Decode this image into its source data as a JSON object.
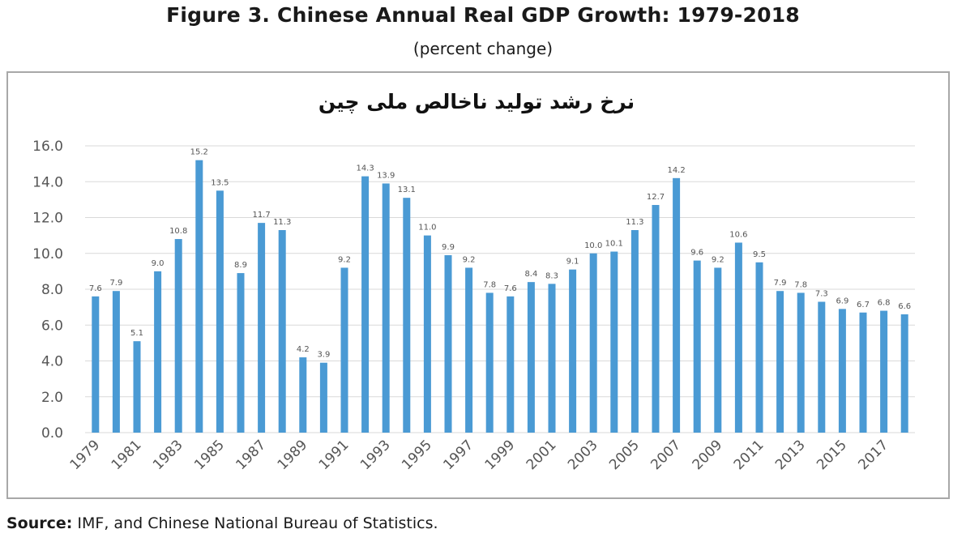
{
  "figure": {
    "title": "Figure 3. Chinese Annual Real GDP Growth: 1979-2018",
    "subtitle": "(percent change)"
  },
  "source": {
    "label": "Source:",
    "text": " IMF, and Chinese National Bureau of Statistics."
  },
  "chart_data": {
    "type": "bar",
    "title": "نرخ رشد تولید ناخالص ملی چین",
    "xlabel": "",
    "ylabel": "",
    "ylim": [
      0,
      16
    ],
    "yticks": [
      "0.0",
      "2.0",
      "4.0",
      "6.0",
      "8.0",
      "10.0",
      "12.0",
      "14.0",
      "16.0"
    ],
    "grid": true,
    "bar_color": "#4a9ad4",
    "categories": [
      "1979",
      "1980",
      "1981",
      "1982",
      "1983",
      "1984",
      "1985",
      "1986",
      "1987",
      "1988",
      "1989",
      "1990",
      "1991",
      "1992",
      "1993",
      "1994",
      "1995",
      "1996",
      "1997",
      "1998",
      "1999",
      "2000",
      "2001",
      "2002",
      "2003",
      "2004",
      "2005",
      "2006",
      "2007",
      "2008",
      "2009",
      "2010",
      "2011",
      "2012",
      "2013",
      "2014",
      "2015",
      "2016",
      "2017",
      "2018"
    ],
    "xtick_labels": [
      "1979",
      "",
      "1981",
      "",
      "1983",
      "",
      "1985",
      "",
      "1987",
      "",
      "1989",
      "",
      "1991",
      "",
      "1993",
      "",
      "1995",
      "",
      "1997",
      "",
      "1999",
      "",
      "2001",
      "",
      "2003",
      "",
      "2005",
      "",
      "2007",
      "",
      "2009",
      "",
      "2011",
      "",
      "2013",
      "",
      "2015",
      "",
      "2017",
      ""
    ],
    "values": [
      7.6,
      7.9,
      5.1,
      9.0,
      10.8,
      15.2,
      13.5,
      8.9,
      11.7,
      11.3,
      4.2,
      3.9,
      9.2,
      14.3,
      13.9,
      13.1,
      11.0,
      9.9,
      9.2,
      7.8,
      7.6,
      8.4,
      8.3,
      9.1,
      10.0,
      10.1,
      11.3,
      12.7,
      14.2,
      9.6,
      9.2,
      10.6,
      9.5,
      7.9,
      7.8,
      7.3,
      6.9,
      6.7,
      6.8,
      6.6
    ],
    "data_labels": [
      "7.6",
      "7.9",
      "5.1",
      "9.0",
      "10.8",
      "15.2",
      "13.5",
      "8.9",
      "11.7",
      "11.3",
      "4.2",
      "3.9",
      "9.2",
      "14.3",
      "13.9",
      "13.1",
      "11.0",
      "9.9",
      "9.2",
      "7.8",
      "7.6",
      "8.4",
      "8.3",
      "9.1",
      "10.0",
      "10.1",
      "11.3",
      "12.7",
      "14.2",
      "9.6",
      "9.2",
      "10.6",
      "9.5",
      "7.9",
      "7.8",
      "7.3",
      "6.9",
      "6.7",
      "6.8",
      "6.6"
    ]
  }
}
